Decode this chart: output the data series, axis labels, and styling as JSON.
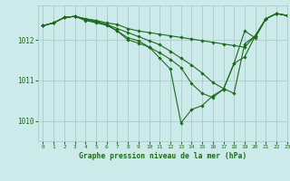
{
  "title": "Graphe pression niveau de la mer (hPa)",
  "background_color": "#cdeaea",
  "grid_color": "#aacccc",
  "line_color": "#1a6b1a",
  "marker_color": "#1a6b1a",
  "xlim": [
    -0.5,
    23
  ],
  "ylim": [
    1009.5,
    1012.85
  ],
  "yticks": [
    1010,
    1011,
    1012
  ],
  "xticks": [
    0,
    1,
    2,
    3,
    4,
    5,
    6,
    7,
    8,
    9,
    10,
    11,
    12,
    13,
    14,
    15,
    16,
    17,
    18,
    19,
    20,
    21,
    22,
    23
  ],
  "series": [
    [
      1012.35,
      1012.42,
      1012.55,
      1012.58,
      1012.52,
      1012.48,
      1012.42,
      1012.38,
      1012.28,
      1012.22,
      1012.18,
      1012.14,
      1012.1,
      1012.06,
      1012.02,
      1011.98,
      1011.94,
      1011.9,
      1011.86,
      1011.82,
      1012.1,
      1012.52,
      1012.65,
      1012.6
    ],
    [
      1012.35,
      1012.42,
      1012.55,
      1012.58,
      1012.5,
      1012.44,
      1012.38,
      1012.28,
      1012.18,
      1012.08,
      1011.98,
      1011.88,
      1011.72,
      1011.55,
      1011.38,
      1011.18,
      1010.95,
      1010.8,
      1010.68,
      1011.9,
      1012.1,
      1012.52,
      1012.65,
      1012.6
    ],
    [
      1012.35,
      1012.42,
      1012.55,
      1012.58,
      1012.52,
      1012.46,
      1012.38,
      1012.22,
      1012.05,
      1011.98,
      1011.82,
      1011.55,
      1011.28,
      1009.95,
      1010.28,
      1010.38,
      1010.62,
      1010.78,
      1011.42,
      1011.58,
      1012.1,
      1012.52,
      1012.65,
      1012.6
    ],
    [
      1012.35,
      1012.42,
      1012.55,
      1012.58,
      1012.48,
      1012.42,
      1012.36,
      1012.22,
      1012.0,
      1011.92,
      1011.82,
      1011.68,
      1011.52,
      1011.32,
      1010.92,
      1010.68,
      1010.58,
      1010.78,
      1011.42,
      1012.22,
      1012.05,
      1012.52,
      1012.65,
      1012.6
    ]
  ]
}
